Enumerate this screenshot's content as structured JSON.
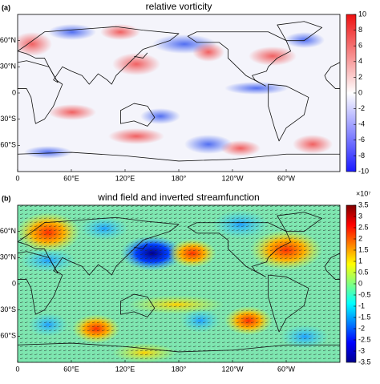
{
  "chart_data": [
    {
      "type": "contour_map",
      "panel_label": "(a)",
      "title": "relative vorticity",
      "xlim": [
        0,
        360
      ],
      "ylim": [
        -90,
        90
      ],
      "xticks": [
        0,
        {
          "value": 60,
          "label": "60°E"
        },
        {
          "value": 120,
          "label": "120°E"
        },
        {
          "value": 180,
          "label": "180°"
        },
        {
          "value": 240,
          "label": "120°W"
        },
        {
          "value": 300,
          "label": "60°W"
        }
      ],
      "yticks": [
        {
          "value": 60,
          "label": "60°N"
        },
        {
          "value": 30,
          "label": "30°N"
        },
        0,
        {
          "value": -30,
          "label": "30°S"
        },
        {
          "value": -60,
          "label": "60°S"
        }
      ],
      "colorbar": {
        "lim": [
          -10,
          10
        ],
        "ticks": [
          10,
          8,
          6,
          4,
          2,
          0,
          -2,
          -4,
          -6,
          -8,
          -10
        ],
        "colors": [
          "#1a1aff",
          "#ffffff",
          "#ee1111"
        ]
      }
    },
    {
      "type": "contour_map",
      "panel_label": "(b)",
      "title": "wind field and inverted streamfunction",
      "xlim": [
        0,
        360
      ],
      "ylim": [
        -90,
        90
      ],
      "xticks": [
        0,
        {
          "value": 60,
          "label": "60°E"
        },
        {
          "value": 120,
          "label": "120°E"
        },
        {
          "value": 180,
          "label": "180°"
        },
        {
          "value": 240,
          "label": "120°W"
        },
        {
          "value": 300,
          "label": "60°W"
        }
      ],
      "yticks": [
        {
          "value": 60,
          "label": "60°N"
        },
        {
          "value": 30,
          "label": "30°N"
        },
        0,
        {
          "value": -30,
          "label": "30°S"
        },
        {
          "value": -60,
          "label": "60°S"
        }
      ],
      "colorbar": {
        "lim": [
          -3.5,
          3.5
        ],
        "ticks": [
          3.5,
          3,
          2.5,
          2,
          1.5,
          1,
          0.5,
          0,
          -0.5,
          -1,
          -1.5,
          -2,
          -2.5,
          -3,
          -3.5
        ],
        "exponent_label": "×10⁷",
        "colors": [
          "#00008f",
          "#0000ff",
          "#0080ff",
          "#00ffff",
          "#80ff80",
          "#ffff00",
          "#ff8000",
          "#ff0000",
          "#800000"
        ]
      }
    }
  ]
}
